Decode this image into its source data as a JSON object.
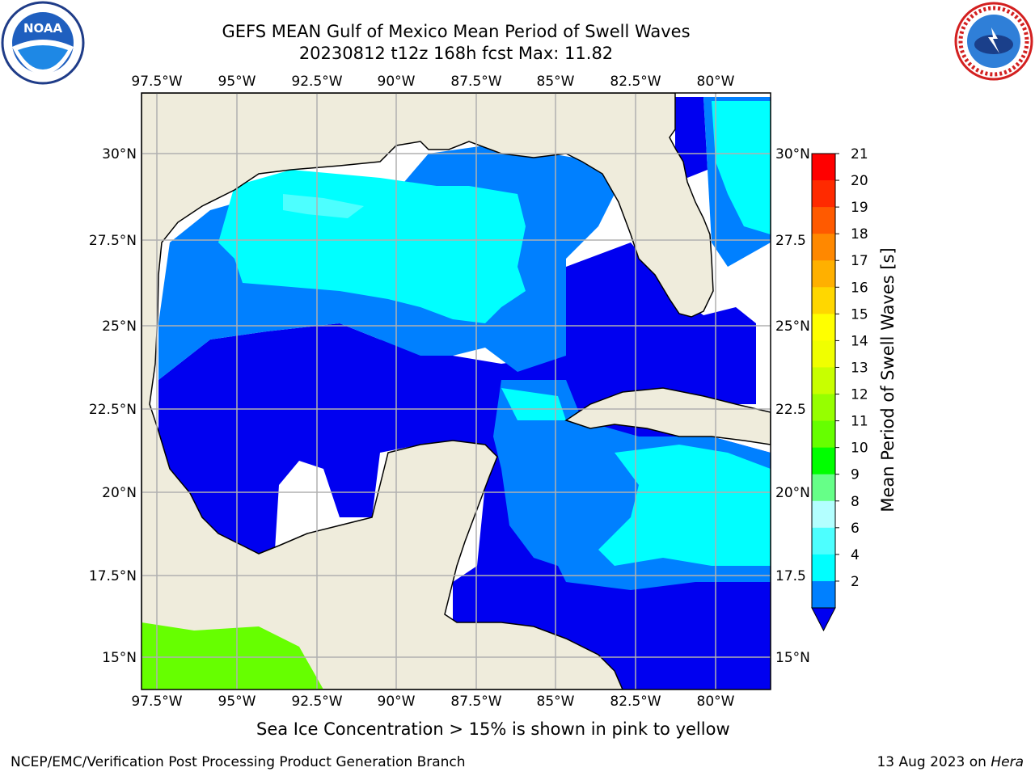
{
  "title": {
    "line1": "GEFS MEAN Gulf of Mexico Mean Period of Swell Waves",
    "line2": "20230812 t12z 168h fcst   Max: 11.82"
  },
  "map": {
    "lon_labels": [
      "97.5°W",
      "95°W",
      "92.5°W",
      "90°W",
      "87.5°W",
      "85°W",
      "82.5°W",
      "80°W"
    ],
    "lat_labels_left": [
      "30°N",
      "27.5°N",
      "25°N",
      "22.5°N",
      "20°N",
      "17.5°N",
      "15°N"
    ],
    "lat_labels_right": [
      "30°N",
      "27.5",
      "25°N",
      "22.5",
      "20°N",
      "17.5",
      "15°N"
    ],
    "colors": {
      "land": "#efecdc",
      "level_2_4": "#0000f0",
      "level_4_6": "#0080ff",
      "level_6_8": "#00ffff",
      "level_8_9": "#4dffff",
      "level_10_12": "#66ff00"
    }
  },
  "colorbar": {
    "label": "Mean Period of Swell Waves [s]",
    "ticks": [
      "21",
      "20",
      "19",
      "18",
      "17",
      "16",
      "15",
      "14",
      "13",
      "12",
      "11",
      "10",
      "9",
      "8",
      "6",
      "4",
      "2"
    ],
    "colors": [
      "#ff0000",
      "#ff2a00",
      "#ff5a00",
      "#ff8800",
      "#ffb000",
      "#ffd700",
      "#ffff00",
      "#f0ff00",
      "#c8ff00",
      "#96ff00",
      "#66ff00",
      "#00ff00",
      "#66ff88",
      "#b3ffff",
      "#4dffff",
      "#00ffff",
      "#0080ff",
      "#0000f0"
    ]
  },
  "ice_note": "Sea Ice Concentration > 15% is shown in pink to yellow",
  "credit": "NCEP/EMC/Verification Post Processing Product Generation Branch",
  "date": {
    "text": "13 Aug 2023 on ",
    "host": "Hera"
  },
  "logos": {
    "left": "noaa-logo",
    "right": "nws-logo"
  }
}
